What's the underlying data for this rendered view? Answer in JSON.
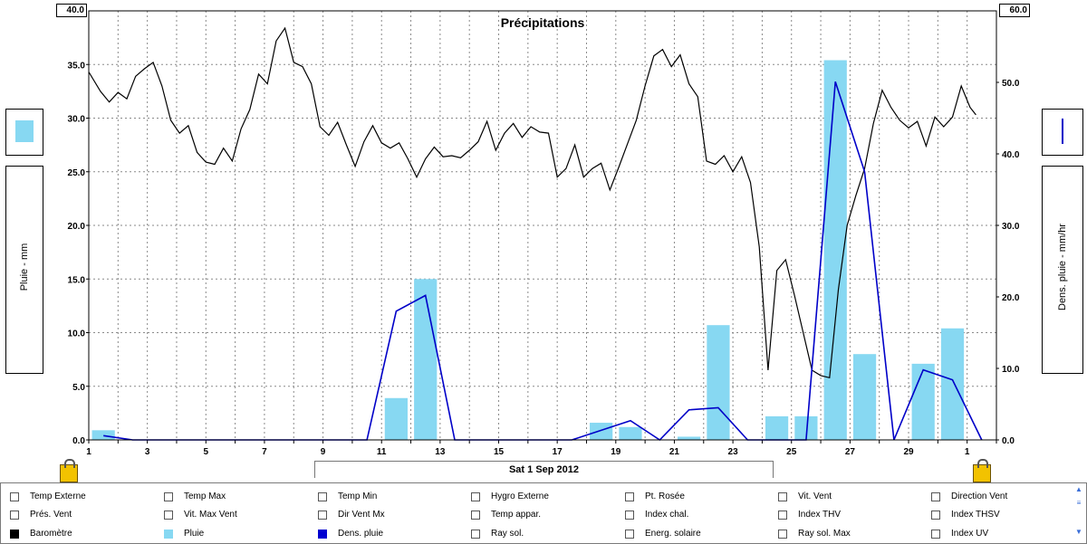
{
  "chart_data": {
    "type": "line+bar",
    "title": "Précipitations",
    "left_axis": {
      "label": "Pluie - mm",
      "ticks": [
        "0.0",
        "5.0",
        "10.0",
        "15.0",
        "20.0",
        "25.0",
        "30.0",
        "35.0",
        "40.0"
      ],
      "max_label": "40.0",
      "range": [
        0,
        40
      ]
    },
    "right_axis": {
      "label": "Dens. pluie - mm/hr",
      "ticks": [
        "0.0",
        "10.0",
        "20.0",
        "30.0",
        "40.0",
        "50.0",
        "60.0"
      ],
      "max_label": "60.0",
      "range": [
        0,
        60
      ]
    },
    "x_axis": {
      "ticks": [
        "1",
        "3",
        "5",
        "7",
        "9",
        "11",
        "13",
        "15",
        "17",
        "19",
        "21",
        "23",
        "25",
        "27",
        "29",
        "1"
      ],
      "range_days": [
        1,
        32
      ]
    },
    "date_label": "Sat 1 Sep 2012",
    "grid": true,
    "series": [
      {
        "name": "Pluie",
        "type": "bar",
        "color": "#87d8f2",
        "x": [
          1.5,
          11.5,
          12.5,
          18.5,
          19.5,
          21.5,
          22.5,
          24.5,
          25.5,
          26.5,
          27.5,
          29.5,
          30.5
        ],
        "values": [
          0.9,
          3.9,
          15.0,
          1.6,
          1.2,
          0.3,
          10.7,
          2.2,
          2.2,
          35.4,
          8.0,
          7.1,
          10.4
        ]
      },
      {
        "name": "Dens. pluie",
        "type": "line",
        "axis": "right",
        "color": "#0000c8",
        "x": [
          1.5,
          2.5,
          10.5,
          11.5,
          12.5,
          13.5,
          17.5,
          19.5,
          20.5,
          21.5,
          22.5,
          23.5,
          25.5,
          26.5,
          27.5,
          28.5,
          29.5,
          30.5,
          31.5
        ],
        "values": [
          0.6,
          0,
          0,
          18,
          20.2,
          0,
          0,
          2.7,
          0,
          4.2,
          4.5,
          0,
          0,
          50.1,
          37.5,
          0,
          9.8,
          8.4,
          0
        ]
      },
      {
        "name": "Baromètre",
        "type": "line",
        "axis": "left",
        "color": "#000000",
        "x": [
          1.0,
          1.4,
          1.7,
          2.0,
          2.3,
          2.6,
          2.9,
          3.2,
          3.5,
          3.8,
          4.1,
          4.4,
          4.7,
          5.0,
          5.3,
          5.6,
          5.9,
          6.2,
          6.5,
          6.8,
          7.1,
          7.4,
          7.7,
          8.0,
          8.3,
          8.6,
          8.9,
          9.2,
          9.5,
          9.8,
          10.1,
          10.4,
          10.7,
          11.0,
          11.3,
          11.6,
          11.9,
          12.2,
          12.5,
          12.8,
          13.1,
          13.4,
          13.7,
          14.0,
          14.3,
          14.6,
          14.9,
          15.2,
          15.5,
          15.8,
          16.1,
          16.4,
          16.7,
          17.0,
          17.3,
          17.6,
          17.9,
          18.2,
          18.5,
          18.8,
          19.1,
          19.4,
          19.7,
          20.0,
          20.3,
          20.6,
          20.9,
          21.2,
          21.5,
          21.8,
          22.1,
          22.4,
          22.7,
          23.0,
          23.3,
          23.6,
          23.9,
          24.2,
          24.5,
          24.8,
          25.1,
          25.4,
          25.7,
          26.0,
          26.3,
          26.6,
          26.9,
          27.2,
          27.5,
          27.8,
          28.1,
          28.4,
          28.7,
          29.0,
          29.3,
          29.6,
          29.9,
          30.2,
          30.5,
          30.8,
          31.1,
          31.3
        ],
        "values": [
          34.3,
          32.5,
          31.5,
          32.4,
          31.8,
          33.9,
          34.6,
          35.2,
          33.0,
          29.8,
          28.6,
          29.3,
          26.8,
          25.9,
          25.7,
          27.2,
          26.0,
          29.0,
          30.8,
          34.1,
          33.2,
          37.2,
          38.4,
          35.2,
          34.8,
          33.2,
          29.2,
          28.4,
          29.6,
          27.5,
          25.5,
          27.8,
          29.3,
          27.7,
          27.2,
          27.7,
          26.2,
          24.5,
          26.2,
          27.3,
          26.4,
          26.5,
          26.3,
          27.0,
          27.8,
          29.7,
          27.0,
          28.6,
          29.5,
          28.2,
          29.2,
          28.7,
          28.6,
          24.5,
          25.3,
          27.5,
          24.5,
          25.3,
          25.8,
          23.3,
          25.4,
          27.6,
          29.8,
          33.0,
          35.8,
          36.4,
          34.8,
          35.9,
          33.2,
          32.0,
          26.0,
          25.7,
          26.5,
          25.0,
          26.4,
          24.0,
          18.0,
          6.5,
          15.8,
          16.8,
          13.5,
          10.0,
          6.5,
          6.0,
          5.8,
          14.0,
          20.0,
          22.8,
          25.3,
          29.5,
          32.6,
          31.0,
          29.8,
          29.1,
          29.7,
          27.4,
          30.1,
          29.2,
          30.1,
          33.0,
          31.0,
          30.3
        ]
      }
    ]
  },
  "left_panel": {
    "swatch_color": "#87d8f2",
    "axis_label": "Pluie - mm"
  },
  "right_panel": {
    "swatch_color": "#0000c8",
    "axis_label": "Dens. pluie - mm/hr"
  },
  "legend": {
    "rows": [
      [
        "Temp Externe",
        "Temp Max",
        "Temp Min",
        "Hygro Externe",
        "Pt. Rosée",
        "Vit. Vent",
        "Direction Vent"
      ],
      [
        "Prés. Vent",
        "Vit. Max Vent",
        "Dir Vent Mx",
        "Temp appar.",
        "Index chal.",
        "Index THV",
        "Index THSV"
      ],
      [
        "Baromètre",
        "Pluie",
        "Dens. pluie",
        "Ray sol.",
        "Energ. solaire",
        "Ray sol. Max",
        "Index UV"
      ]
    ],
    "checked": {
      "Baromètre": "#000000",
      "Pluie": "#87d8f2",
      "Dens. pluie": "#0000d0"
    }
  }
}
